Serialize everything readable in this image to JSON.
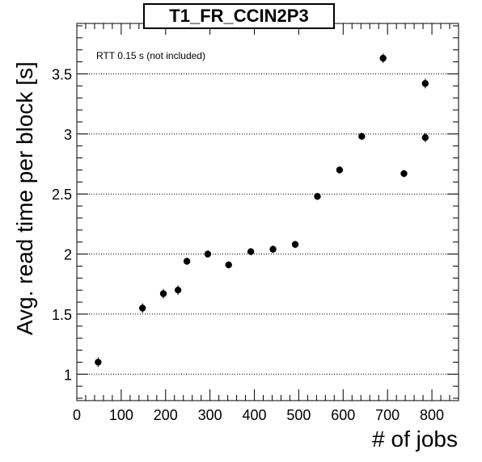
{
  "chart_data": {
    "type": "scatter",
    "title": "T1_FR_CCIN2P3",
    "xlabel": "# of jobs",
    "ylabel": "Avg. read time per block [s]",
    "annotation": "RTT 0.15 s (not included)",
    "xlim": [
      0,
      860
    ],
    "ylim": [
      0.78,
      3.92
    ],
    "xticks": [
      0,
      100,
      200,
      300,
      400,
      500,
      600,
      700,
      800
    ],
    "yticks": [
      1,
      1.5,
      2,
      2.5,
      3,
      3.5
    ],
    "ytick_labels": [
      "1",
      "1.5",
      "2",
      "2.5",
      "3",
      "3.5"
    ],
    "grid": "horizontal dotted",
    "series": [
      {
        "x": [
          48,
          148,
          195,
          228,
          248,
          295,
          342,
          392,
          442,
          492,
          542,
          592,
          642,
          690,
          737,
          785,
          785
        ],
        "y": [
          1.1,
          1.55,
          1.67,
          1.7,
          1.94,
          2.0,
          1.91,
          2.02,
          2.04,
          2.08,
          2.48,
          2.7,
          2.98,
          3.63,
          2.67,
          3.42,
          2.97
        ],
        "yerr": [
          0.04,
          0.04,
          0.04,
          0.04,
          0.03,
          0.03,
          0.03,
          0.03,
          0.03,
          0.03,
          0.03,
          0.03,
          0.03,
          0.04,
          0.03,
          0.04,
          0.04
        ]
      }
    ],
    "colors": {
      "marker": "#000000",
      "axis": "#000000",
      "grid": "#000000"
    }
  }
}
